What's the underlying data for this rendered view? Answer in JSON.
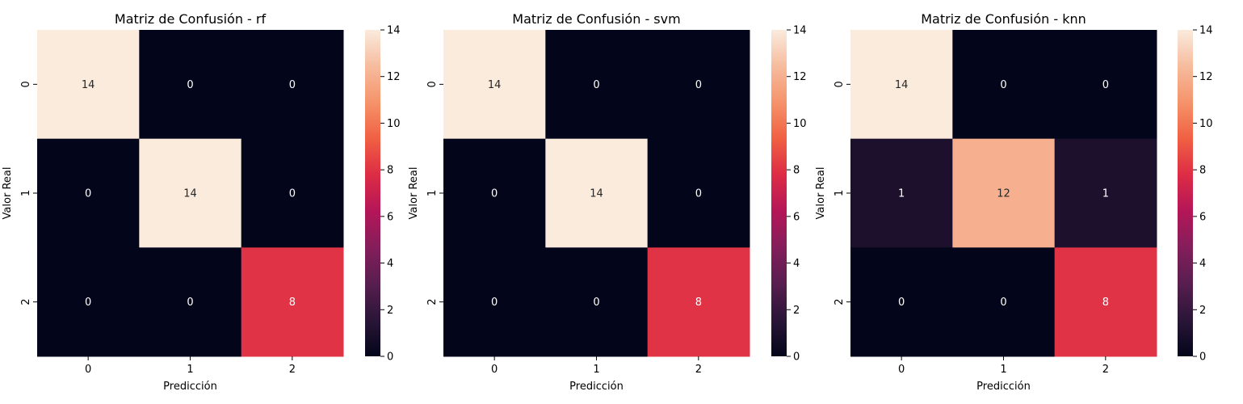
{
  "chart_data": [
    {
      "type": "heatmap",
      "title": "Matriz de Confusión - rf",
      "xlabel": "Predicción",
      "ylabel": "Valor Real",
      "x_categories": [
        "0",
        "1",
        "2"
      ],
      "y_categories": [
        "0",
        "1",
        "2"
      ],
      "values": [
        [
          14,
          0,
          0
        ],
        [
          0,
          14,
          0
        ],
        [
          0,
          0,
          8
        ]
      ],
      "colorbar": {
        "range": [
          0,
          14
        ],
        "ticks": [
          0,
          2,
          4,
          6,
          8,
          10,
          12,
          14
        ]
      },
      "colormap": "rocket"
    },
    {
      "type": "heatmap",
      "title": "Matriz de Confusión - svm",
      "xlabel": "Predicción",
      "ylabel": "Valor Real",
      "x_categories": [
        "0",
        "1",
        "2"
      ],
      "y_categories": [
        "0",
        "1",
        "2"
      ],
      "values": [
        [
          14,
          0,
          0
        ],
        [
          0,
          14,
          0
        ],
        [
          0,
          0,
          8
        ]
      ],
      "colorbar": {
        "range": [
          0,
          14
        ],
        "ticks": [
          0,
          2,
          4,
          6,
          8,
          10,
          12,
          14
        ]
      },
      "colormap": "rocket"
    },
    {
      "type": "heatmap",
      "title": "Matriz de Confusión - knn",
      "xlabel": "Predicción",
      "ylabel": "Valor Real",
      "x_categories": [
        "0",
        "1",
        "2"
      ],
      "y_categories": [
        "0",
        "1",
        "2"
      ],
      "values": [
        [
          14,
          0,
          0
        ],
        [
          1,
          12,
          1
        ],
        [
          0,
          0,
          8
        ]
      ],
      "colorbar": {
        "range": [
          0,
          14
        ],
        "ticks": [
          0,
          2,
          4,
          6,
          8,
          10,
          12,
          14
        ]
      },
      "colormap": "rocket"
    }
  ],
  "colors": {
    "rocket_stops": [
      "#03051a",
      "#2a1637",
      "#571e4f",
      "#841e5a",
      "#b41658",
      "#dd2c45",
      "#f06043",
      "#f5936a",
      "#f6bc9e",
      "#faebdd"
    ]
  }
}
